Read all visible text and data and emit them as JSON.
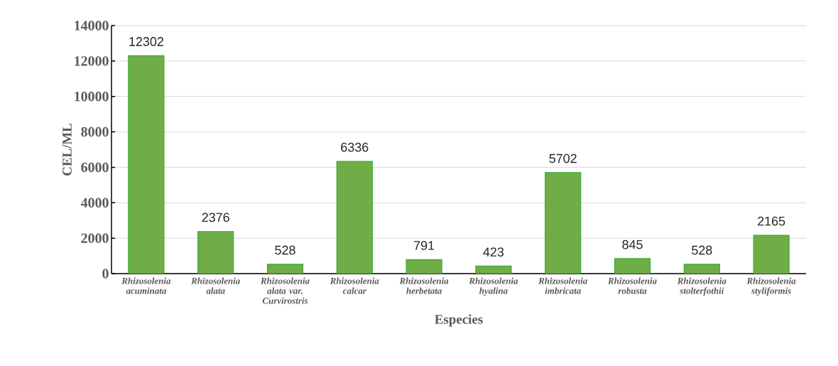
{
  "chart_data": {
    "type": "bar",
    "xlabel": "Especies",
    "ylabel": "CEL/ML",
    "categories": [
      "Rhizosolenia acuminata",
      "Rhizosolenia alata",
      "Rhizosolenia alata var. Curvirostris",
      "Rhizosolenia calcar",
      "Rhizosolenia herbetata",
      "Rhizosolenia hyalina",
      "Rhizosolenia imbricata",
      "Rhizosolenia robusta",
      "Rhizosolenia stolterfothii",
      "Rhizosolenia styliformis"
    ],
    "values": [
      12302,
      2376,
      528,
      6336,
      791,
      423,
      5702,
      845,
      528,
      2165
    ],
    "color": "#70ad47",
    "ylim": [
      0,
      14000
    ],
    "yticks": [
      0,
      2000,
      4000,
      6000,
      8000,
      10000,
      12000,
      14000
    ],
    "grid": "y",
    "data_labels": true
  }
}
